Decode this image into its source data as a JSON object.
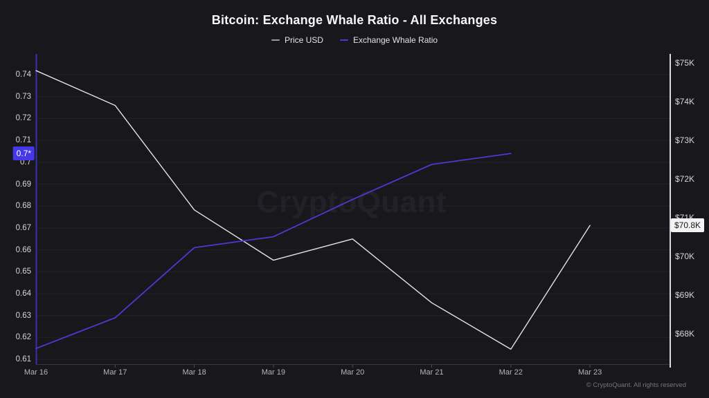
{
  "header": {
    "title": "Bitcoin: Exchange Whale Ratio - All Exchanges"
  },
  "legend": {
    "items": [
      {
        "label": "Price USD",
        "color": "#9b9ba1"
      },
      {
        "label": "Exchange Whale Ratio",
        "color": "#4b3ad9"
      }
    ]
  },
  "watermark": {
    "text": "CryptoQuant"
  },
  "footer": {
    "copyright": "© CryptoQuant. All rights reserved"
  },
  "left_axis": {
    "tick_labels": [
      "0.74",
      "0.73",
      "0.72",
      "0.71",
      "0.7",
      "0.69",
      "0.68",
      "0.67",
      "0.66",
      "0.65",
      "0.64",
      "0.63",
      "0.62",
      "0.61"
    ],
    "current_badge": {
      "label": "0.7*",
      "bg": "#4538e6",
      "fg": "#ffffff"
    }
  },
  "right_axis": {
    "tick_labels": [
      "$75K",
      "$74K",
      "$73K",
      "$72K",
      "$71K",
      "$70K",
      "$69K",
      "$68K"
    ],
    "current_badge": {
      "label": "$70.8K",
      "bg": "#f4f4f4",
      "fg": "#141418"
    }
  },
  "chart_data": {
    "type": "line",
    "title": "Bitcoin: Exchange Whale Ratio - All Exchanges",
    "x_labels": [
      "Mar 16",
      "Mar 17",
      "Mar 18",
      "Mar 19",
      "Mar 20",
      "Mar 21",
      "Mar 22",
      "Mar 23"
    ],
    "series": [
      {
        "name": "Price USD",
        "axis": "right",
        "unit": "USD thousands",
        "color": "#e3e3e6",
        "values": [
          74.8,
          73.9,
          71.2,
          69.9,
          70.45,
          68.8,
          67.6,
          70.8
        ]
      },
      {
        "name": "Exchange Whale Ratio",
        "axis": "left",
        "unit": "ratio",
        "color": "#4c3ad2",
        "values": [
          0.615,
          0.629,
          0.661,
          0.666,
          0.683,
          0.699,
          0.704,
          null
        ]
      }
    ],
    "left_axis_range": [
      0.61,
      0.74
    ],
    "left_axis_step": 0.01,
    "right_axis_range_k": [
      68,
      75
    ],
    "right_axis_step_k": 1,
    "grid": "horizontal",
    "legend_position": "top",
    "latest_values": {
      "exchange_whale_ratio": "0.7*",
      "price_usd": "$70.8K"
    }
  },
  "colors": {
    "background": "#18171c",
    "grid": "#232228",
    "left_axis_line": "#3b2fae",
    "right_axis_line": "#dcdcde",
    "bottom_axis_line": "#36363c",
    "x_tick": "#4a4a52"
  }
}
